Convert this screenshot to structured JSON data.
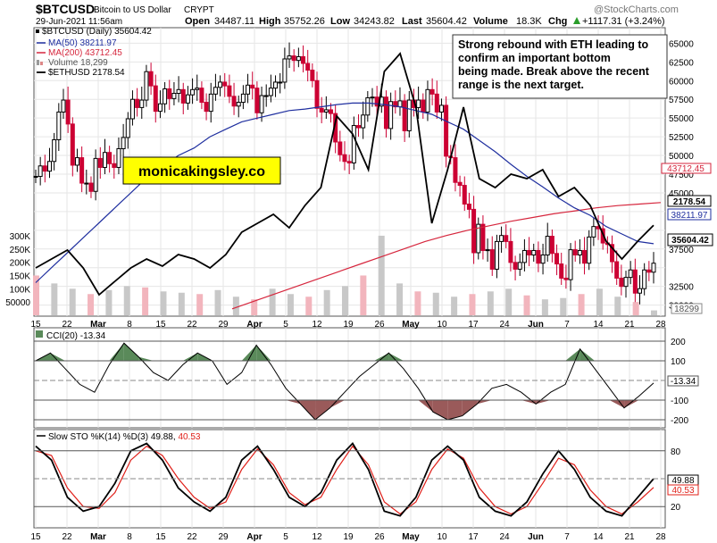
{
  "header": {
    "symbol": "$BTCUSD",
    "name": "Bitcoin to US Dollar",
    "exchange": "CRYPT",
    "date": "29-Jun-2021 11:56am",
    "open_label": "Open",
    "open": "34487.11",
    "high_label": "High",
    "high": "35752.26",
    "low_label": "Low",
    "low": "34243.82",
    "last_label": "Last",
    "last": "35604.42",
    "volume_label": "Volume",
    "volume": "18.3K",
    "chg_label": "Chg",
    "chg": "+1117.31 (+3.24%)",
    "watermark": "@StockCharts.com",
    "chg_icon": "up-arrow-icon"
  },
  "legend": {
    "main": "$BTCUSD (Daily) 35604.42",
    "ma50": "MA(50) 38211.97",
    "ma200": "MA(200) 43712.45",
    "volume": "Volume 18,299",
    "eth": "$ETHUSD 2178.54"
  },
  "annotation": "Strong rebound with ETH leading to confirm an important bottom being made. Break above the recent range is the next target.",
  "site_label": "monicakingsley.co",
  "price_axis": [
    "65000",
    "62500",
    "60000",
    "57500",
    "55000",
    "52500",
    "50000",
    "47500",
    "45000",
    "42500",
    "37500",
    "32500",
    "30000"
  ],
  "volume_axis": [
    "300K",
    "250K",
    "200K",
    "150K",
    "100K",
    "50000"
  ],
  "value_tags": {
    "ma200": "43712.45",
    "eth": "2178.54",
    "ma50": "38211.97",
    "last": "35604.42",
    "volume": "18299",
    "cci": "-13.34",
    "sto_k": "49.88",
    "sto_d": "40.53"
  },
  "x_labels": [
    "15",
    "22",
    "Mar",
    "8",
    "15",
    "22",
    "29",
    "Apr",
    "5",
    "12",
    "19",
    "26",
    "May",
    "10",
    "17",
    "24",
    "Jun",
    "7",
    "14",
    "21",
    "28"
  ],
  "cci": {
    "title": "CCI(20) -13.34",
    "axis": [
      "200",
      "100",
      "-100",
      "-200"
    ]
  },
  "sto": {
    "title_prefix": "Slow STO %K(14) %D(3) 49.88, ",
    "title_d": "40.53",
    "axis": [
      "80",
      "20"
    ]
  },
  "colors": {
    "up": "#000000",
    "down": "#cc0033",
    "ma50": "#1f2f9f",
    "ma200": "#d6263d",
    "eth": "#000000",
    "vol_up": "#c8c8c8",
    "vol_down": "#f2b5bd",
    "cci_pos": "#5a8a5a",
    "cci_neg": "#9a5a5a",
    "sto_d": "#e0201a",
    "site_bg": "#ffff00"
  },
  "chart_data": {
    "type": "candlestick",
    "title": "$BTCUSD (Daily) 35604.42",
    "x_start": "2021-02-13",
    "x_end": "2021-06-29",
    "ylim": [
      29000,
      66000
    ],
    "price_close": [
      47200,
      48600,
      47900,
      49200,
      52100,
      55800,
      57400,
      54200,
      48700,
      49700,
      46300,
      46300,
      45200,
      49600,
      48400,
      50400,
      48900,
      48400,
      50900,
      52400,
      54900,
      57500,
      56400,
      57400,
      61200,
      59300,
      55900,
      56900,
      58900,
      57600,
      58300,
      58800,
      57000,
      58100,
      58800,
      59000,
      57100,
      55900,
      58200,
      59100,
      59800,
      59300,
      57900,
      56600,
      57100,
      58200,
      59400,
      59000,
      55700,
      58000,
      58000,
      59000,
      59800,
      59800,
      62900,
      63300,
      62700,
      63200,
      62300,
      61400,
      60000,
      56300,
      55800,
      56100,
      55600,
      51800,
      50100,
      49200,
      49000,
      54000,
      53700,
      55400,
      57700,
      57800,
      56600,
      57800,
      53600,
      57200,
      56500,
      57300,
      53300,
      57400,
      56400,
      57400,
      55800,
      58800,
      58200,
      55800,
      56700,
      49900,
      49700,
      46400,
      46000,
      43500,
      42800,
      37000,
      40800,
      37300,
      37400,
      34800,
      38500,
      39300,
      38500,
      35700,
      34800,
      35700,
      37300,
      36700,
      37300,
      35600,
      36700,
      39200,
      36900,
      35500,
      33600,
      33400,
      37400,
      36700,
      37300,
      35600,
      39100,
      40500,
      40200,
      38300,
      38100,
      35800,
      33600,
      32500,
      33700,
      34700,
      31600,
      32200,
      34700,
      34400,
      35600
    ],
    "ma50": [
      33000,
      35000,
      37000,
      39000,
      41000,
      43000,
      45000,
      47000,
      48500,
      50000,
      51000,
      52500,
      53500,
      54500,
      55000,
      55500,
      56000,
      56200,
      56500,
      56800,
      57000,
      57000,
      56800,
      56500,
      56000,
      55500,
      54500,
      53500,
      52000,
      50500,
      48800,
      47200,
      45800,
      44300,
      43000,
      42000,
      40500,
      39500,
      38500,
      38200
    ],
    "ma200": [
      29500,
      30500,
      31500,
      32500,
      33500,
      34500,
      35500,
      36500,
      37500,
      38500,
      39300,
      40000,
      40600,
      41200,
      41700,
      42200,
      42600,
      43000,
      43300,
      43500,
      43700
    ],
    "eth_usd": [
      1700,
      1800,
      1900,
      1700,
      1400,
      1550,
      1700,
      1800,
      1720,
      1850,
      1800,
      1700,
      1850,
      2100,
      2200,
      2300,
      2150,
      2400,
      2600,
      3400,
      3200,
      2800,
      3900,
      4100,
      3500,
      2200,
      2800,
      3500,
      2700,
      2600,
      2750,
      2700,
      2800,
      2500,
      2600,
      2400,
      2000,
      1800,
      2000,
      2178
    ],
    "volume": [
      150000,
      120000,
      100000,
      80000,
      95000,
      110000,
      105000,
      90000,
      85000,
      80000,
      95000,
      70000,
      60000,
      100000,
      80000,
      70000,
      95000,
      110000,
      150000,
      300000,
      120000,
      90000,
      85000,
      70000,
      80000,
      90000,
      100000,
      75000,
      60000,
      65000,
      80000,
      100000,
      70000,
      50000,
      18299
    ],
    "cci": [
      100,
      140,
      60,
      -20,
      -60,
      80,
      190,
      120,
      40,
      0,
      80,
      140,
      100,
      -20,
      40,
      180,
      80,
      -40,
      -120,
      -200,
      -140,
      -60,
      20,
      80,
      140,
      60,
      -40,
      -160,
      -200,
      -180,
      -120,
      -40,
      -20,
      -60,
      -120,
      -60,
      -20,
      160,
      60,
      -40,
      -140,
      -80,
      -13
    ],
    "sto_k": [
      85,
      70,
      30,
      15,
      20,
      45,
      80,
      88,
      70,
      40,
      25,
      15,
      30,
      70,
      85,
      60,
      30,
      20,
      35,
      70,
      88,
      60,
      15,
      10,
      30,
      70,
      85,
      70,
      30,
      15,
      10,
      25,
      55,
      80,
      60,
      30,
      15,
      10,
      30,
      50
    ],
    "sto_d": [
      80,
      75,
      40,
      20,
      18,
      35,
      70,
      85,
      75,
      50,
      30,
      18,
      25,
      60,
      82,
      65,
      35,
      22,
      30,
      60,
      85,
      65,
      25,
      12,
      25,
      60,
      82,
      72,
      40,
      20,
      12,
      20,
      45,
      72,
      65,
      38,
      20,
      12,
      25,
      40.53
    ]
  }
}
